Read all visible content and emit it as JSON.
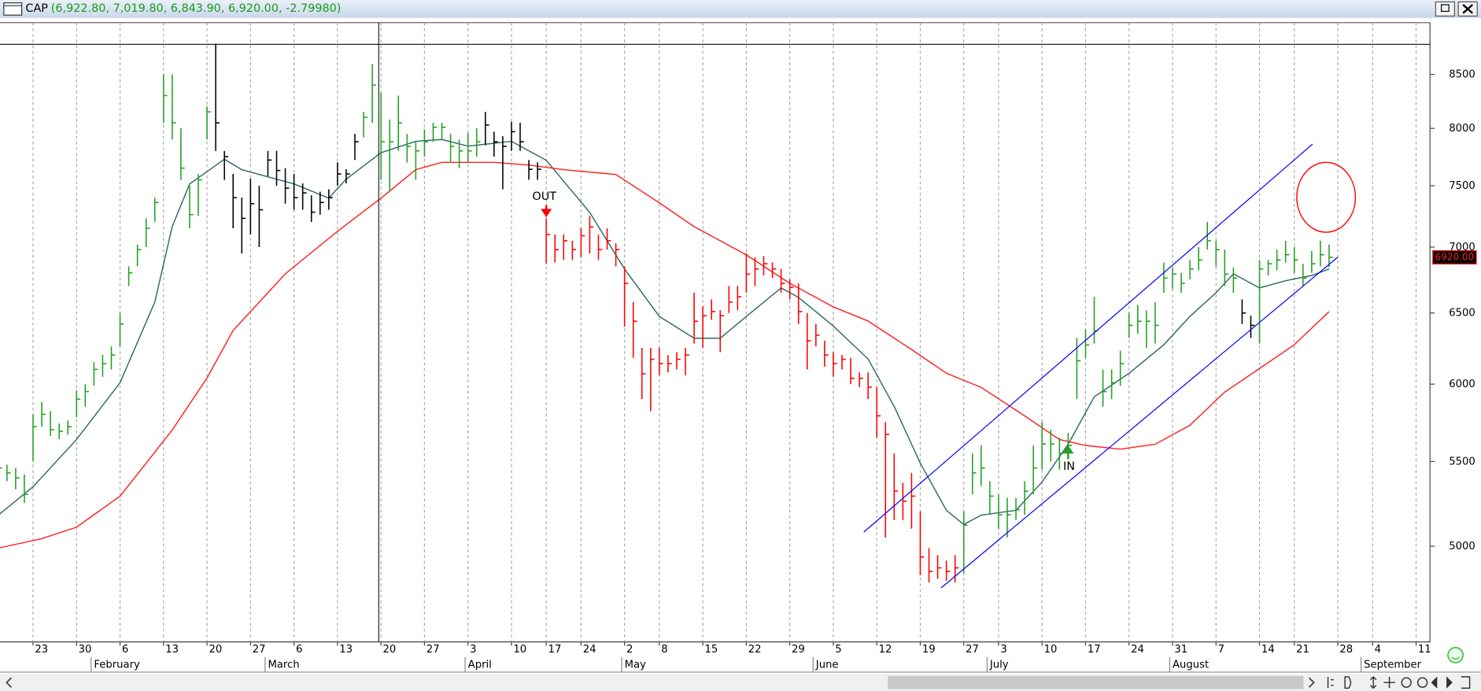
{
  "chart_data": {
    "type": "ohlc",
    "title": "CAP",
    "subtitle": "(6,922.80, 7,019.80, 6,843.90, 6,920.00, -2.79980)",
    "log_scale": true,
    "grid": true,
    "xlim": [
      1.2,
      165.6
    ],
    "ylim": [
      4490,
      9010
    ],
    "yticks": [
      5000,
      5500,
      6000,
      6500,
      7000,
      7500,
      8000,
      8500
    ],
    "xticks": [
      {
        "value": 5,
        "label": "23"
      },
      {
        "value": 10,
        "label": "30"
      },
      {
        "value": 15,
        "label": "6"
      },
      {
        "value": 20,
        "label": "13"
      },
      {
        "value": 25,
        "label": "20"
      },
      {
        "value": 30,
        "label": "27"
      },
      {
        "value": 35,
        "label": "6"
      },
      {
        "value": 40,
        "label": "13"
      },
      {
        "value": 45,
        "label": "20"
      },
      {
        "value": 50,
        "label": "27"
      },
      {
        "value": 55,
        "label": "3"
      },
      {
        "value": 60,
        "label": "10"
      },
      {
        "value": 64,
        "label": "17"
      },
      {
        "value": 68,
        "label": "24"
      },
      {
        "value": 73,
        "label": "2"
      },
      {
        "value": 77,
        "label": "8"
      },
      {
        "value": 82,
        "label": "15"
      },
      {
        "value": 87,
        "label": "22"
      },
      {
        "value": 92,
        "label": "29"
      },
      {
        "value": 97,
        "label": "5"
      },
      {
        "value": 102,
        "label": "12"
      },
      {
        "value": 107,
        "label": "19"
      },
      {
        "value": 112,
        "label": "27"
      },
      {
        "value": 116,
        "label": "3"
      },
      {
        "value": 121,
        "label": "10"
      },
      {
        "value": 126,
        "label": "17"
      },
      {
        "value": 131,
        "label": "24"
      },
      {
        "value": 136,
        "label": "31"
      },
      {
        "value": 141,
        "label": "7"
      },
      {
        "value": 146,
        "label": "14"
      },
      {
        "value": 150,
        "label": "21"
      },
      {
        "value": 155,
        "label": "28"
      },
      {
        "value": 159,
        "label": "4"
      },
      {
        "value": 164,
        "label": "11"
      }
    ],
    "month_ticks": [
      {
        "value": 12,
        "label": "February"
      },
      {
        "value": 32,
        "label": "March"
      },
      {
        "value": 55,
        "label": "April"
      },
      {
        "value": 73,
        "label": "May"
      },
      {
        "value": 95,
        "label": "June"
      },
      {
        "value": 115,
        "label": "July"
      },
      {
        "value": 136,
        "label": "August"
      },
      {
        "value": 158,
        "label": "September"
      }
    ],
    "segments": [
      {
        "color": "#22a022",
        "x": [
          1,
          2,
          3,
          4,
          5,
          6,
          7,
          8,
          9,
          10,
          11,
          12,
          13,
          14,
          15,
          16,
          17,
          18,
          19,
          20,
          21,
          22,
          23,
          24,
          25
        ],
        "high": [
          5520,
          5480,
          5460,
          5420,
          5800,
          5880,
          5820,
          5740,
          5760,
          5960,
          6000,
          6150,
          6200,
          6260,
          6500,
          6850,
          7020,
          7230,
          7400,
          8500,
          8500,
          8000,
          7500,
          7600,
          8200
        ],
        "low": [
          5400,
          5380,
          5330,
          5250,
          5500,
          5720,
          5660,
          5640,
          5670,
          5780,
          5850,
          5990,
          6050,
          6100,
          6260,
          6700,
          6850,
          7000,
          7200,
          8050,
          7900,
          7550,
          7150,
          7250,
          7900
        ],
        "close": [
          5460,
          5430,
          5400,
          5300,
          5720,
          5800,
          5700,
          5690,
          5720,
          5900,
          5950,
          6100,
          6140,
          6200,
          6420,
          6800,
          6980,
          7150,
          7360,
          8300,
          8050,
          7650,
          7260,
          7550,
          8150
        ]
      },
      {
        "color": "#000000",
        "x": [
          26,
          27,
          28,
          29,
          30,
          31,
          32,
          33,
          34,
          35,
          36,
          37,
          38,
          39,
          40,
          41,
          42
        ],
        "high": [
          8800,
          7800,
          7600,
          7400,
          7560,
          7500,
          7800,
          7800,
          7650,
          7600,
          7520,
          7420,
          7450,
          7470,
          7700,
          7640,
          7950
        ],
        "low": [
          7800,
          7550,
          7150,
          6950,
          7100,
          7000,
          7580,
          7500,
          7350,
          7300,
          7300,
          7200,
          7260,
          7300,
          7500,
          7520,
          7720
        ],
        "close": [
          8050,
          7750,
          7400,
          7230,
          7350,
          7300,
          7720,
          7630,
          7480,
          7400,
          7440,
          7280,
          7360,
          7400,
          7600,
          7600,
          7880
        ]
      },
      {
        "color": "#22a022",
        "x": [
          43,
          44,
          45,
          46,
          47,
          48,
          49,
          50,
          51,
          52,
          53,
          54,
          55,
          56
        ],
        "high": [
          8150,
          8600,
          8330,
          8080,
          8300,
          7950,
          7880,
          7990,
          8050,
          8050,
          7950,
          7900,
          7960,
          8000
        ],
        "low": [
          7920,
          8050,
          7550,
          7450,
          7800,
          7700,
          7550,
          7750,
          7880,
          7900,
          7700,
          7650,
          7700,
          7750
        ],
        "close": [
          8100,
          8400,
          7880,
          7880,
          8050,
          7840,
          7800,
          7880,
          8010,
          8010,
          7840,
          7800,
          7800,
          7880
        ]
      },
      {
        "color": "#000000",
        "x": [
          57,
          58,
          59,
          60,
          61,
          62,
          63
        ],
        "high": [
          8150,
          7970,
          7930,
          8060,
          8050,
          7720,
          7700
        ],
        "low": [
          7850,
          7750,
          7470,
          7800,
          7800,
          7550,
          7550
        ],
        "close": [
          8030,
          7880,
          7840,
          7970,
          7880,
          7640,
          7640
        ]
      },
      {
        "color": "#ff0000",
        "x": [
          64,
          65,
          66,
          67,
          68,
          69,
          70,
          71,
          72,
          73,
          74,
          75,
          76,
          77,
          78,
          79,
          80,
          81,
          82,
          83,
          84,
          85,
          86,
          87,
          88,
          89,
          90,
          91,
          92,
          93,
          94,
          95,
          96,
          97,
          98,
          99,
          100,
          101,
          102,
          103,
          104,
          105,
          106,
          107,
          108,
          109,
          110,
          111
        ],
        "high": [
          7230,
          7100,
          7100,
          7050,
          7150,
          7250,
          7100,
          7150,
          7030,
          6850,
          6580,
          6250,
          6250,
          6250,
          6200,
          6220,
          6250,
          6650,
          6550,
          6600,
          6520,
          6700,
          6700,
          6950,
          6920,
          6930,
          6880,
          6830,
          6750,
          6720,
          6500,
          6420,
          6300,
          6220,
          6200,
          6180,
          6080,
          6080,
          5980,
          5750,
          5550,
          5370,
          5430,
          5200,
          4990,
          4950,
          4920,
          4950
        ],
        "low": [
          6870,
          6880,
          6900,
          6900,
          6920,
          6950,
          6900,
          6980,
          6850,
          6400,
          6180,
          5900,
          5820,
          6060,
          6080,
          6100,
          6060,
          6280,
          6250,
          6450,
          6220,
          6500,
          6520,
          6650,
          6700,
          6780,
          6760,
          6650,
          6600,
          6420,
          6100,
          6260,
          6120,
          6050,
          6100,
          6000,
          5980,
          5900,
          5650,
          5050,
          5150,
          5150,
          5100,
          4840,
          4800,
          4820,
          4810,
          4800
        ],
        "close": [
          7100,
          6980,
          7050,
          6980,
          7090,
          7160,
          6980,
          7050,
          6980,
          6720,
          6440,
          6070,
          6170,
          6140,
          6140,
          6170,
          6200,
          6440,
          6480,
          6510,
          6480,
          6580,
          6620,
          6790,
          6830,
          6870,
          6830,
          6720,
          6690,
          6510,
          6300,
          6340,
          6200,
          6140,
          6170,
          6040,
          6040,
          5980,
          5790,
          5670,
          5320,
          5260,
          5290,
          4940,
          4860,
          4880,
          4860,
          4880
        ]
      },
      {
        "color": "#22a022",
        "x": [
          112,
          113,
          114,
          115,
          116,
          117,
          118,
          119,
          120,
          121,
          122,
          123,
          124,
          125,
          126,
          127,
          128,
          129,
          130,
          131,
          132,
          133,
          134,
          135,
          136,
          137,
          138,
          139,
          140,
          141,
          142,
          143
        ],
        "high": [
          5200,
          5550,
          5600,
          5380,
          5300,
          5280,
          5280,
          5380,
          5600,
          5750,
          5700,
          5650,
          5680,
          6320,
          6380,
          6620,
          6100,
          6100,
          6230,
          6500,
          6560,
          6520,
          6580,
          6880,
          6840,
          6800,
          6900,
          7000,
          7200,
          7050,
          6980,
          6840
        ],
        "low": [
          4850,
          5300,
          5350,
          5180,
          5100,
          5050,
          5150,
          5180,
          5300,
          5450,
          5500,
          5450,
          5520,
          5900,
          6180,
          6280,
          5850,
          5900,
          5990,
          6320,
          6350,
          6250,
          6280,
          6650,
          6680,
          6650,
          6750,
          6820,
          6980,
          6850,
          6700,
          6650
        ],
        "close": [
          5120,
          5430,
          5460,
          5290,
          5180,
          5180,
          5210,
          5320,
          5460,
          5610,
          5610,
          5550,
          5600,
          6160,
          6270,
          6370,
          5950,
          6010,
          6140,
          6410,
          6440,
          6440,
          6410,
          6760,
          6790,
          6720,
          6830,
          6900,
          7050,
          6980,
          6790,
          6760
        ]
      },
      {
        "color": "#000000",
        "x": [
          144,
          145
        ],
        "high": [
          6600,
          6480
        ],
        "low": [
          6420,
          6320
        ],
        "close": [
          6500,
          6410
        ]
      },
      {
        "color": "#22a022",
        "x": [
          146,
          147,
          148,
          149,
          150,
          151,
          152,
          153,
          154
        ],
        "high": [
          6900,
          6900,
          6980,
          7050,
          7000,
          6870,
          6970,
          7050,
          7019.8
        ],
        "low": [
          6280,
          6780,
          6820,
          6880,
          6800,
          6700,
          6800,
          6850,
          6843.9
        ],
        "close": [
          6830,
          6870,
          6900,
          6940,
          6900,
          6760,
          6870,
          6940,
          6920
        ]
      }
    ],
    "lines": [
      {
        "color": "#2f6868",
        "x": [
          1,
          5,
          10,
          15,
          19,
          21,
          23,
          27,
          29,
          32,
          35,
          39,
          41,
          45,
          49,
          52,
          55,
          60,
          64,
          69,
          73,
          77,
          81,
          84,
          87,
          91,
          93,
          97,
          101,
          104,
          107,
          110,
          112,
          114,
          118,
          121,
          124,
          127,
          131,
          135,
          138,
          141,
          143,
          146,
          149,
          152,
          154
        ],
        "values": [
          5178,
          5346,
          5638,
          6010,
          6580,
          7163,
          7516,
          7727,
          7637,
          7576,
          7516,
          7396,
          7556,
          7784,
          7884,
          7900,
          7842,
          7884,
          7718,
          7278,
          6829,
          6475,
          6318,
          6318,
          6475,
          6686,
          6615,
          6406,
          6172,
          5852,
          5490,
          5206,
          5124,
          5178,
          5206,
          5375,
          5608,
          5915,
          6074,
          6272,
          6475,
          6650,
          6793,
          6686,
          6740,
          6780,
          6829
        ]
      },
      {
        "color": "#ff2020",
        "x": [
          1,
          6,
          10,
          15,
          21,
          25,
          28,
          34,
          40,
          45,
          49,
          52,
          58,
          62,
          66,
          72,
          77,
          81,
          87,
          92,
          97,
          101,
          106,
          110,
          114,
          119,
          123,
          126,
          130,
          134,
          138,
          142,
          146,
          150,
          154
        ],
        "values": [
          4990,
          5043,
          5108,
          5290,
          5698,
          6042,
          6373,
          6793,
          7125,
          7396,
          7637,
          7700,
          7700,
          7677,
          7637,
          7596,
          7357,
          7163,
          6939,
          6721,
          6545,
          6441,
          6238,
          6074,
          5978,
          5790,
          5638,
          5600,
          5577,
          5608,
          5729,
          5947,
          6106,
          6272,
          6510
        ]
      }
    ],
    "trendlines": [
      {
        "color": "#0000ff",
        "x": [
          100.5,
          152.1
        ],
        "values": [
          5080,
          7860
        ]
      },
      {
        "color": "#0000ff",
        "x": [
          109.4,
          155
        ],
        "values": [
          4771,
          6921
        ]
      }
    ],
    "annotations": [
      {
        "text": "OUT",
        "x": 64,
        "color": "#ff0000"
      },
      {
        "text": "IN",
        "x": 124,
        "color": "#22a022"
      }
    ],
    "last_price": {
      "value": 6920,
      "label": "6920.00"
    }
  }
}
